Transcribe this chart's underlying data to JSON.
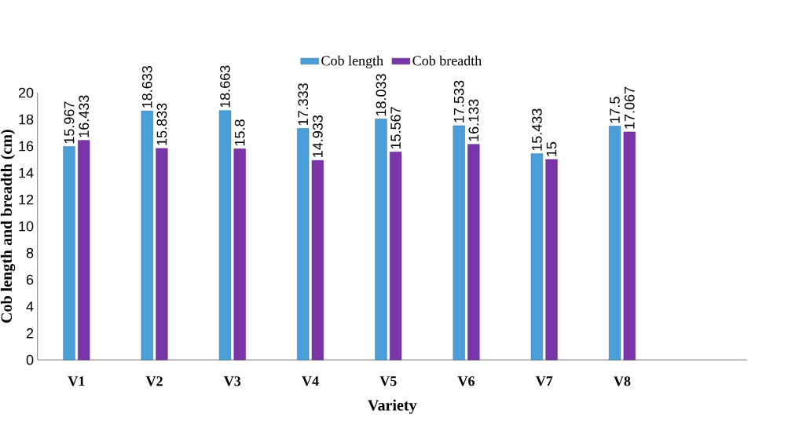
{
  "chart_data": {
    "type": "bar",
    "xlabel": "Variety",
    "ylabel": "Cob length and breadth (cm)",
    "categories": [
      "V1",
      "V2",
      "V3",
      "V4",
      "V5",
      "V6",
      "V7",
      "V8"
    ],
    "series": [
      {
        "name": "Cob length",
        "color": "#4a9fd8",
        "values": [
          15.967,
          18.633,
          18.663,
          17.333,
          18.033,
          17.533,
          15.433,
          17.5
        ]
      },
      {
        "name": "Cob breadth",
        "color": "#7a35a8",
        "values": [
          16.433,
          15.833,
          15.8,
          14.933,
          15.567,
          16.133,
          15,
          17.067
        ]
      }
    ],
    "ylim": [
      0,
      20
    ],
    "yticks": [
      0,
      2,
      4,
      6,
      8,
      10,
      12,
      14,
      16,
      18,
      20
    ],
    "data_labels": true,
    "legend": "top",
    "grid": false
  }
}
